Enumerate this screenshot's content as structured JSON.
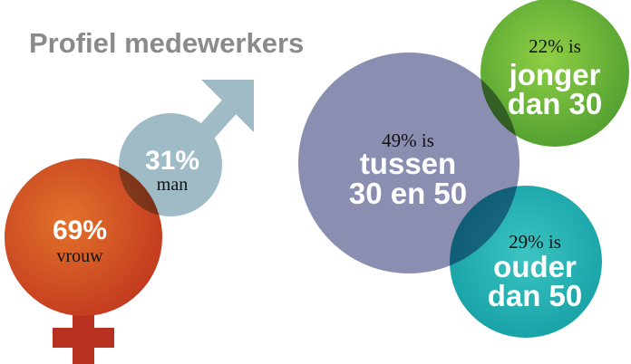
{
  "title": "Profiel medewerkers",
  "gender": [
    {
      "percent": "69%",
      "label": "vrouw"
    },
    {
      "percent": "31%",
      "label": "man"
    }
  ],
  "age": [
    {
      "percent": "49% is",
      "lines": [
        "tussen",
        "30 en 50"
      ]
    },
    {
      "percent": "22% is",
      "lines": [
        "jonger",
        "dan 30"
      ]
    },
    {
      "percent": "29% is",
      "lines": [
        "ouder",
        "dan 50"
      ]
    }
  ]
}
